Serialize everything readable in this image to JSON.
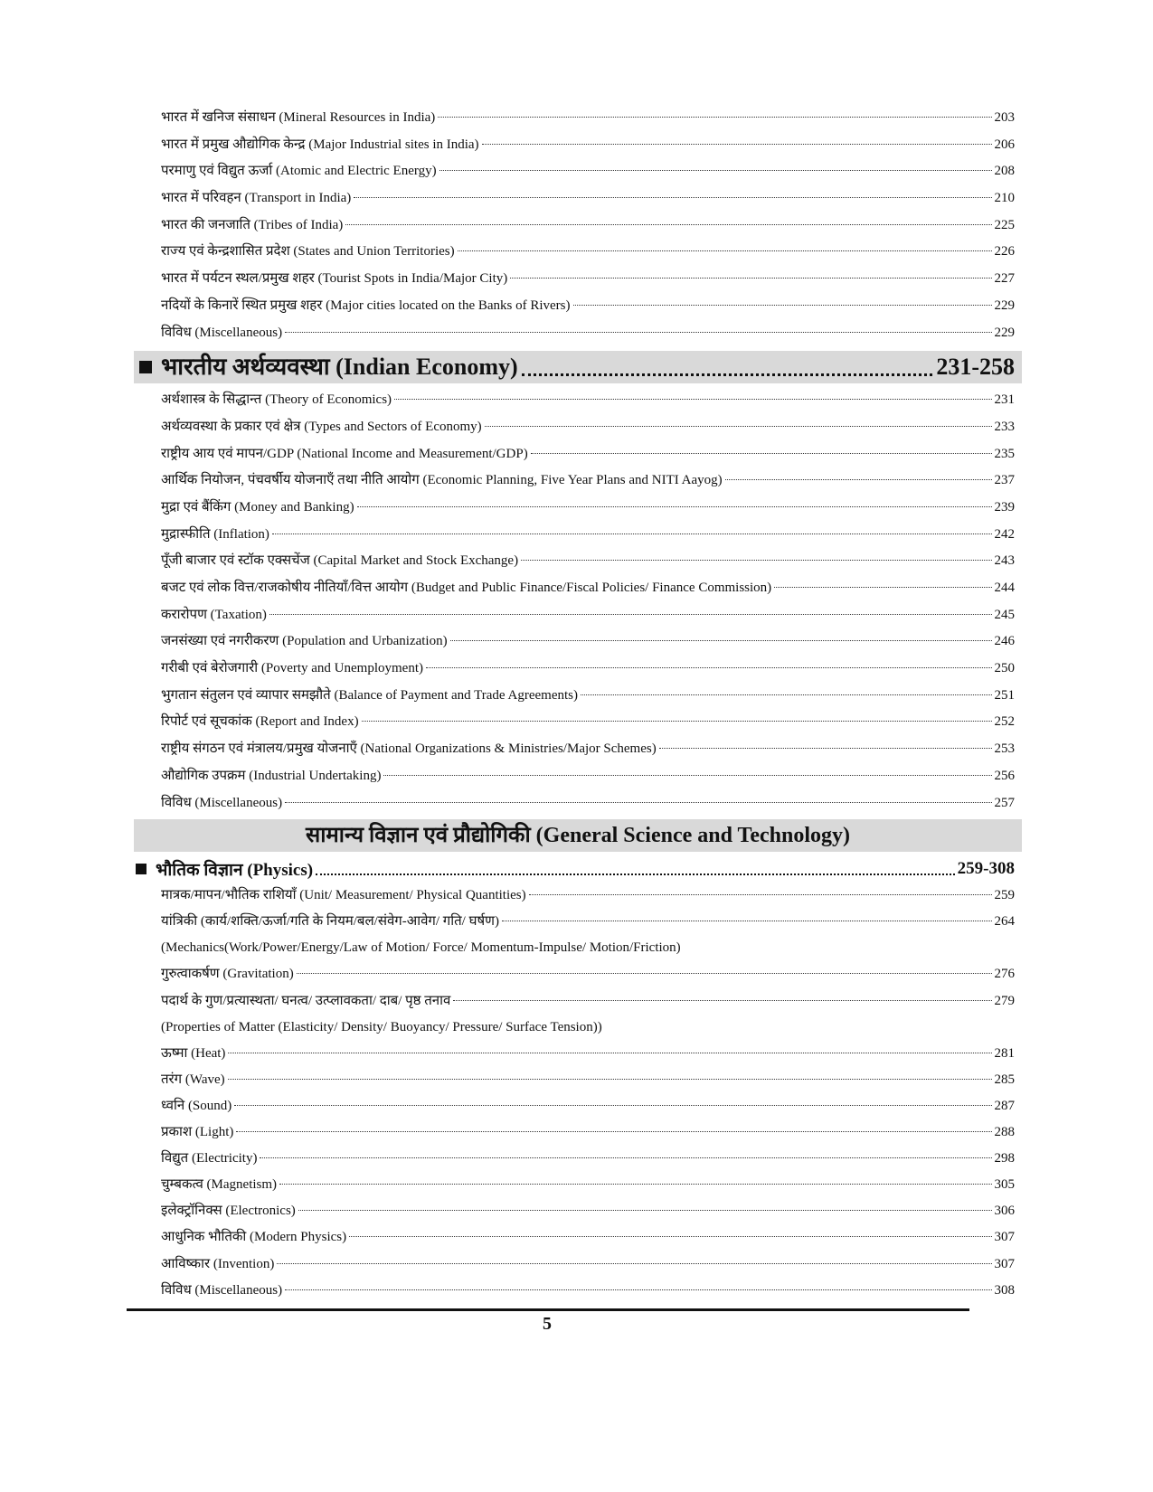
{
  "geography_items": [
    {
      "title": "भारत में खनिज संसाधन (Mineral Resources in India)",
      "page": "203"
    },
    {
      "title": "भारत में प्रमुख औद्योगिक केन्द्र (Major Industrial sites in India)",
      "page": "206"
    },
    {
      "title": "परमाणु एवं विद्युत ऊर्जा (Atomic and Electric Energy)",
      "page": "208"
    },
    {
      "title": "भारत में परिवहन (Transport in India)",
      "page": "210"
    },
    {
      "title": "भारत की जनजाति (Tribes of India)",
      "page": "225"
    },
    {
      "title": "राज्य एवं केन्द्रशासित प्रदेश (States and Union Territories)",
      "page": "226"
    },
    {
      "title": "भारत में पर्यटन स्थल/प्रमुख शहर (Tourist Spots in India/Major City)",
      "page": "227"
    },
    {
      "title": "नदियों के किनारें स्थित प्रमुख शहर (Major cities located on the Banks of Rivers)",
      "page": "229"
    },
    {
      "title": "विविध (Miscellaneous)",
      "page": "229"
    }
  ],
  "economy": {
    "title": "भारतीय अर्थव्यवस्था (Indian Economy)",
    "pages": "231-258",
    "items": [
      {
        "title": "अर्थशास्त्र के सिद्धान्त (Theory of Economics)",
        "page": "231"
      },
      {
        "title": "अर्थव्यवस्था के प्रकार एवं क्षेत्र (Types and Sectors of Economy)",
        "page": "233"
      },
      {
        "title": "राष्ट्रीय आय एवं मापन/GDP (National Income and Measurement/GDP)",
        "page": "235"
      },
      {
        "title": "आर्थिक नियोजन, पंचवर्षीय योजनाएँ तथा नीति आयोग (Economic Planning, Five Year Plans and NITI Aayog)",
        "page": "237"
      },
      {
        "title": "मुद्रा एवं बैंकिंग (Money and Banking)",
        "page": "239"
      },
      {
        "title": "मुद्रास्फीति (Inflation)",
        "page": "242"
      },
      {
        "title": "पूँजी बाजार एवं स्टॉक एक्सचेंज (Capital Market and Stock Exchange)",
        "page": "243"
      },
      {
        "title": "बजट एवं लोक वित्त/राजकोषीय नीतियाँ/वित्त आयोग (Budget and Public Finance/Fiscal Policies/ Finance Commission)",
        "page": "244"
      },
      {
        "title": "करारोपण (Taxation)",
        "page": "245"
      },
      {
        "title": "जनसंख्या एवं नगरीकरण (Population and Urbanization)",
        "page": "246"
      },
      {
        "title": "गरीबी एवं बेरोजगारी (Poverty and Unemployment)",
        "page": "250"
      },
      {
        "title": "भुगतान संतुलन एवं व्यापार समझौते (Balance of Payment and Trade Agreements)",
        "page": "251"
      },
      {
        "title": "रिपोर्ट एवं सूचकांक (Report and Index)",
        "page": "252"
      },
      {
        "title": "राष्ट्रीय संगठन एवं मंत्रालय/प्रमुख योजनाएँ (National Organizations & Ministries/Major Schemes)",
        "page": "253"
      },
      {
        "title": "औद्योगिक उपक्रम (Industrial Undertaking)",
        "page": "256"
      },
      {
        "title": "विविध (Miscellaneous)",
        "page": "257"
      }
    ]
  },
  "science": {
    "title": "सामान्य विज्ञान एवं प्रौद्योगिकी (General Science and Technology)",
    "physics": {
      "title": "भौतिक विज्ञान (Physics)",
      "pages": "259-308",
      "items": [
        {
          "title": "मात्रक/मापन/भौतिक राशियाँ (Unit/ Measurement/ Physical Quantities)",
          "page": "259"
        },
        {
          "title": "यांत्रिकी (कार्य/शक्ति/ऊर्जा/गति के नियम/बल/संवेग-आवेग/ गति/ घर्षण)",
          "page": "264"
        },
        {
          "title": "(Mechanics(Work/Power/Energy/Law of Motion/ Force/ Momentum-Impulse/ Motion/Friction)",
          "page": ""
        },
        {
          "title": "गुरुत्वाकर्षण (Gravitation)",
          "page": "276"
        },
        {
          "title": "पदार्थ के गुण/प्रत्यास्थता/ घनत्व/ उत्प्लावकता/ दाब/ पृष्ठ तनाव",
          "page": "279"
        },
        {
          "title": "(Properties of Matter (Elasticity/ Density/ Buoyancy/ Pressure/ Surface Tension))",
          "page": ""
        },
        {
          "title": "ऊष्मा (Heat)",
          "page": "281"
        },
        {
          "title": "तरंग (Wave)",
          "page": "285"
        },
        {
          "title": "ध्वनि (Sound)",
          "page": "287"
        },
        {
          "title": "प्रकाश (Light)",
          "page": "288"
        },
        {
          "title": "विद्युत (Electricity)",
          "page": "298"
        },
        {
          "title": "चुम्बकत्व (Magnetism)",
          "page": "305"
        },
        {
          "title": "इलेक्ट्रॉनिक्स (Electronics)",
          "page": "306"
        },
        {
          "title": "आधुनिक भौतिकी (Modern Physics)",
          "page": "307"
        },
        {
          "title": "आविष्कार (Invention)",
          "page": "307"
        },
        {
          "title": "विविध (Miscellaneous)",
          "page": "308"
        }
      ]
    }
  },
  "page_number": "5"
}
